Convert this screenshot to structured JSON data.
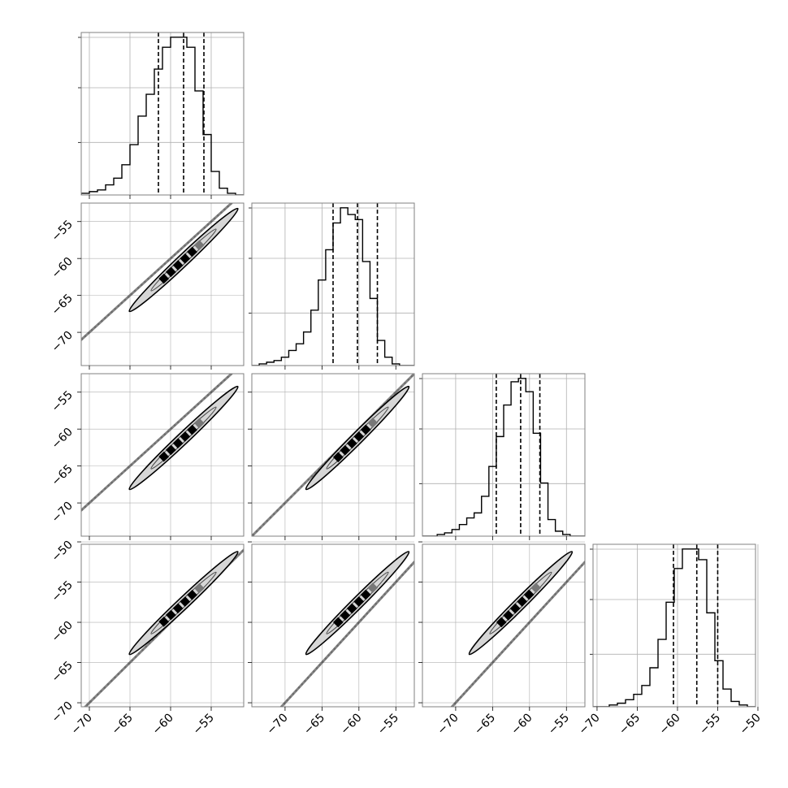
{
  "chart_data": {
    "type": "corner",
    "title": "",
    "grid": true,
    "colors": {
      "line": "#000000",
      "grid": "#b0b0b0",
      "spine": "#808080",
      "ellipse": "#d6d6d6"
    },
    "variables": [
      {
        "range": [
          -71,
          -51
        ],
        "ticks": [
          -70,
          -65,
          -60,
          -55
        ],
        "tick_labels": [
          "−70",
          "−65",
          "−60",
          "−55"
        ],
        "quantiles": [
          -61.5,
          -58.4,
          -55.9
        ],
        "hist_counts": [
          1,
          2,
          3,
          6,
          10,
          18,
          30,
          47,
          60,
          75,
          88,
          94,
          94,
          88,
          62,
          36,
          14,
          4,
          1,
          0
        ]
      },
      {
        "range": [
          -74.5,
          -52.5
        ],
        "ticks": [
          -70,
          -65,
          -60,
          -55
        ],
        "tick_labels": [
          "−70",
          "−65",
          "−60",
          "−55"
        ],
        "quantiles": [
          -63.5,
          -60.2,
          -57.5
        ],
        "hist_counts": [
          0,
          1,
          2,
          3,
          5,
          9,
          13,
          20,
          33,
          51,
          69,
          85,
          94,
          90,
          87,
          62,
          40,
          15,
          5,
          1,
          0,
          0
        ]
      },
      {
        "range": [
          -74.5,
          -52.5
        ],
        "ticks": [
          -70,
          -65,
          -60,
          -55
        ],
        "tick_labels": [
          "−70",
          "−65",
          "−60",
          "−55"
        ],
        "quantiles": [
          -64.5,
          -61.2,
          -58.6
        ],
        "hist_counts": [
          0,
          0,
          1,
          2,
          4,
          7,
          11,
          14,
          24,
          42,
          60,
          79,
          93,
          95,
          87,
          62,
          32,
          10,
          3,
          1,
          0,
          0
        ]
      },
      {
        "range": [
          -70.5,
          -50.3
        ],
        "ticks": [
          -70,
          -65,
          -60,
          -55,
          -50
        ],
        "tick_labels": [
          "−70",
          "−65",
          "−60",
          "−55",
          "−50"
        ],
        "quantiles": [
          -60.5,
          -57.6,
          -55.0
        ],
        "hist_counts": [
          0,
          0,
          1,
          2,
          4,
          7,
          12,
          22,
          38,
          59,
          78,
          89,
          89,
          83,
          53,
          26,
          10,
          3,
          1,
          0
        ]
      }
    ]
  }
}
